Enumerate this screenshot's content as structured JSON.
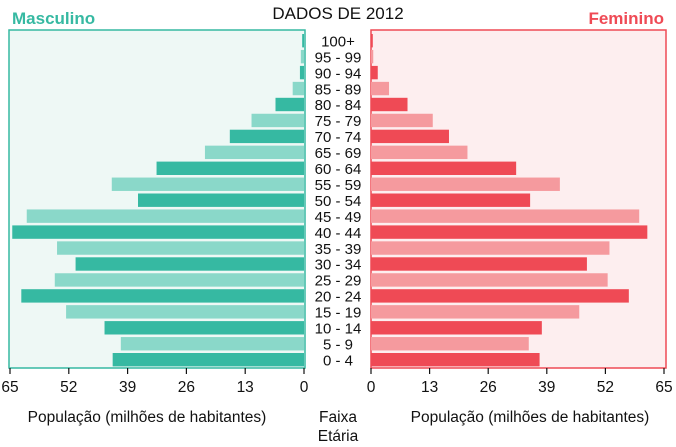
{
  "chart_data": {
    "type": "bar",
    "title": "DADOS DE 2012",
    "left_label": "Masculino",
    "right_label": "Feminino",
    "center_label_line1": "Faixa",
    "center_label_line2": "Etária",
    "xlabel_left": "População (milhões de habitantes)",
    "xlabel_right": "População (milhões de habitantes)",
    "xlim": [
      0,
      65
    ],
    "ticks": [
      0,
      13,
      26,
      39,
      52,
      65
    ],
    "categories": [
      "100+",
      "95 - 99",
      "90 - 94",
      "85 - 89",
      "80 - 84",
      "75 - 79",
      "70 - 74",
      "65 - 69",
      "60 - 64",
      "55 - 59",
      "50 - 54",
      "45 - 49",
      "40 - 44",
      "35 - 39",
      "30 - 34",
      "25 - 29",
      "20 - 24",
      "15 - 19",
      "10 - 14",
      "5 - 9",
      "0 - 4"
    ],
    "series": [
      {
        "name": "Masculino",
        "values": [
          0.4,
          0.7,
          0.9,
          2.5,
          6.3,
          11.6,
          16.4,
          21.9,
          32.6,
          42.5,
          36.7,
          61.3,
          64.5,
          54.6,
          50.5,
          55.1,
          62.5,
          52.6,
          44.1,
          40.5,
          42.3
        ]
      },
      {
        "name": "Feminino",
        "values": [
          0.4,
          0.5,
          1.5,
          4.0,
          8.1,
          13.7,
          17.3,
          21.4,
          32.2,
          41.9,
          35.3,
          59.5,
          61.3,
          52.9,
          47.9,
          52.5,
          57.2,
          46.2,
          37.9,
          35.0,
          37.4
        ]
      }
    ],
    "colors": {
      "male_dark": "#36b9a2",
      "male_light": "#8ad8c9",
      "female_dark": "#ef4a55",
      "female_light": "#f59a9e",
      "male_bg": "#eef8f5",
      "female_bg": "#fdeeef",
      "male_border": "#36b9a2",
      "female_border": "#ef4a55"
    },
    "legend": "none",
    "grid": false
  }
}
